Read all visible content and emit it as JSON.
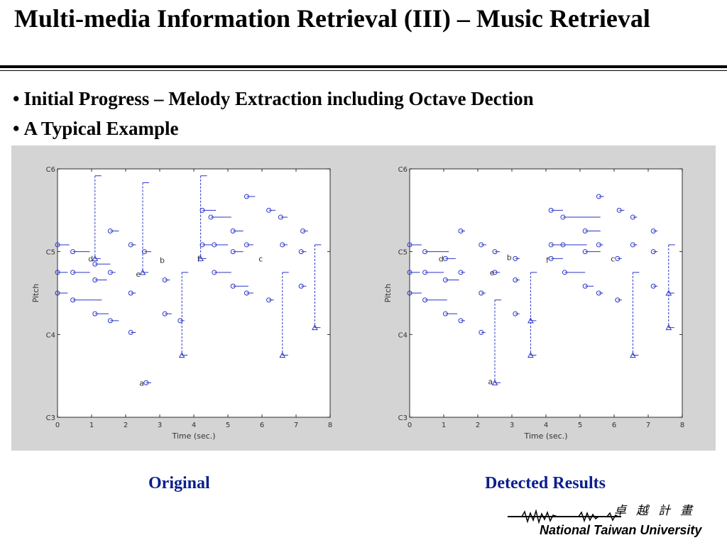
{
  "slide": {
    "title": "Multi-media Information Retrieval (III) – Music Retrieval",
    "bullets": [
      "Initial Progress – Melody Extraction including Octave Dection",
      "A Typical Example"
    ],
    "captions": {
      "left": "Original",
      "right": "Detected Results"
    },
    "logo": {
      "cjk": "卓越計畫",
      "name": "National Taiwan University"
    }
  },
  "colors": {
    "note": "#2a35c8",
    "title": "#000000",
    "caption": "#0a1e8c",
    "panel": "#d4d4d4"
  },
  "chart_data": [
    {
      "type": "scatter",
      "title": "",
      "xlabel": "Time (sec.)",
      "ylabel": "Pitch",
      "x_ticks": [
        "0",
        "1",
        "2",
        "3",
        "4",
        "5",
        "6",
        "7",
        "8"
      ],
      "y_ticks": [
        "C3",
        "C4",
        "C5",
        "C6"
      ],
      "xlim": [
        0,
        8
      ],
      "ylim": [
        36,
        72
      ],
      "grid": false,
      "notes": [
        {
          "start": 0.0,
          "end": 0.35,
          "pitch": 61
        },
        {
          "start": 0.45,
          "end": 0.95,
          "pitch": 60
        },
        {
          "start": 0.0,
          "end": 0.3,
          "pitch": 57
        },
        {
          "start": 0.45,
          "end": 0.95,
          "pitch": 57
        },
        {
          "start": 0.0,
          "end": 0.3,
          "pitch": 54
        },
        {
          "start": 0.45,
          "end": 1.3,
          "pitch": 53
        },
        {
          "start": 1.1,
          "end": 1.55,
          "pitch": 58.2
        },
        {
          "start": 1.1,
          "end": 1.45,
          "pitch": 55.9
        },
        {
          "start": 1.1,
          "end": 1.5,
          "pitch": 51
        },
        {
          "start": 1.55,
          "end": 1.8,
          "pitch": 63
        },
        {
          "start": 1.55,
          "end": 1.7,
          "pitch": 57
        },
        {
          "start": 1.55,
          "end": 1.8,
          "pitch": 50
        },
        {
          "start": 2.15,
          "end": 2.3,
          "pitch": 61
        },
        {
          "start": 2.15,
          "end": 2.3,
          "pitch": 54
        },
        {
          "start": 2.15,
          "end": 2.3,
          "pitch": 48.3
        },
        {
          "start": 2.55,
          "end": 2.75,
          "pitch": 60
        },
        {
          "start": 3.15,
          "end": 3.3,
          "pitch": 55.9
        },
        {
          "start": 3.15,
          "end": 3.35,
          "pitch": 51
        },
        {
          "start": 3.6,
          "end": 3.7,
          "pitch": 50
        },
        {
          "start": 2.6,
          "end": 2.75,
          "pitch": 41
        },
        {
          "start": 4.25,
          "end": 4.65,
          "pitch": 66
        },
        {
          "start": 4.5,
          "end": 5.1,
          "pitch": 65
        },
        {
          "start": 4.25,
          "end": 4.55,
          "pitch": 61
        },
        {
          "start": 4.6,
          "end": 5.0,
          "pitch": 61
        },
        {
          "start": 4.6,
          "end": 5.1,
          "pitch": 57
        },
        {
          "start": 5.15,
          "end": 5.45,
          "pitch": 63
        },
        {
          "start": 5.15,
          "end": 5.45,
          "pitch": 60
        },
        {
          "start": 5.15,
          "end": 5.6,
          "pitch": 55
        },
        {
          "start": 5.55,
          "end": 5.8,
          "pitch": 68
        },
        {
          "start": 5.55,
          "end": 5.75,
          "pitch": 61
        },
        {
          "start": 5.55,
          "end": 5.75,
          "pitch": 54
        },
        {
          "start": 6.2,
          "end": 6.4,
          "pitch": 66
        },
        {
          "start": 6.2,
          "end": 6.35,
          "pitch": 53
        },
        {
          "start": 6.55,
          "end": 6.75,
          "pitch": 65
        },
        {
          "start": 6.6,
          "end": 6.75,
          "pitch": 61
        },
        {
          "start": 7.2,
          "end": 7.35,
          "pitch": 63
        },
        {
          "start": 7.15,
          "end": 7.3,
          "pitch": 60
        },
        {
          "start": 7.15,
          "end": 7.3,
          "pitch": 55
        }
      ],
      "octave_markers": [
        {
          "time": 1.1,
          "from": 71,
          "to": 59
        },
        {
          "time": 2.5,
          "from": 70,
          "to": 57
        },
        {
          "time": 3.65,
          "from": 57,
          "to": 45
        },
        {
          "time": 4.2,
          "from": 71,
          "to": 59
        },
        {
          "time": 6.6,
          "from": 57,
          "to": 45
        },
        {
          "time": 7.55,
          "from": 61,
          "to": 49
        }
      ],
      "letters": [
        {
          "text": "d",
          "time": 0.9,
          "pitch": 59
        },
        {
          "text": "e",
          "time": 2.3,
          "pitch": 56.8
        },
        {
          "text": "b",
          "time": 3.0,
          "pitch": 58.8
        },
        {
          "text": "f",
          "time": 4.1,
          "pitch": 59
        },
        {
          "text": "c",
          "time": 5.9,
          "pitch": 59
        },
        {
          "text": "a",
          "time": 2.4,
          "pitch": 41
        }
      ]
    },
    {
      "type": "scatter",
      "title": "",
      "xlabel": "Time (sec.)",
      "ylabel": "Pitch",
      "x_ticks": [
        "0",
        "1",
        "2",
        "3",
        "4",
        "5",
        "6",
        "7",
        "8"
      ],
      "y_ticks": [
        "C3",
        "C4",
        "C5",
        "C6"
      ],
      "xlim": [
        0,
        8
      ],
      "ylim": [
        36,
        72
      ],
      "grid": false,
      "notes": [
        {
          "start": 0.0,
          "end": 0.35,
          "pitch": 61
        },
        {
          "start": 0.45,
          "end": 1.15,
          "pitch": 60
        },
        {
          "start": 0.0,
          "end": 0.3,
          "pitch": 57
        },
        {
          "start": 0.45,
          "end": 1.0,
          "pitch": 57
        },
        {
          "start": 0.0,
          "end": 0.35,
          "pitch": 54
        },
        {
          "start": 0.45,
          "end": 1.1,
          "pitch": 53
        },
        {
          "start": 1.05,
          "end": 1.35,
          "pitch": 59
        },
        {
          "start": 1.05,
          "end": 1.45,
          "pitch": 55.9
        },
        {
          "start": 1.05,
          "end": 1.4,
          "pitch": 51
        },
        {
          "start": 1.5,
          "end": 1.6,
          "pitch": 63
        },
        {
          "start": 1.5,
          "end": 1.6,
          "pitch": 57
        },
        {
          "start": 1.5,
          "end": 1.6,
          "pitch": 50
        },
        {
          "start": 2.1,
          "end": 2.25,
          "pitch": 61
        },
        {
          "start": 2.1,
          "end": 2.2,
          "pitch": 54
        },
        {
          "start": 2.1,
          "end": 2.2,
          "pitch": 48.3
        },
        {
          "start": 2.5,
          "end": 2.65,
          "pitch": 60
        },
        {
          "start": 2.5,
          "end": 2.65,
          "pitch": 57
        },
        {
          "start": 3.1,
          "end": 3.2,
          "pitch": 59
        },
        {
          "start": 3.1,
          "end": 3.2,
          "pitch": 55.9
        },
        {
          "start": 3.1,
          "end": 3.2,
          "pitch": 51
        },
        {
          "start": 4.15,
          "end": 4.5,
          "pitch": 66
        },
        {
          "start": 4.5,
          "end": 5.6,
          "pitch": 65
        },
        {
          "start": 4.15,
          "end": 4.5,
          "pitch": 61
        },
        {
          "start": 4.5,
          "end": 5.2,
          "pitch": 61
        },
        {
          "start": 4.15,
          "end": 4.5,
          "pitch": 59
        },
        {
          "start": 4.55,
          "end": 5.15,
          "pitch": 57
        },
        {
          "start": 5.15,
          "end": 5.6,
          "pitch": 63
        },
        {
          "start": 5.15,
          "end": 5.6,
          "pitch": 60
        },
        {
          "start": 5.15,
          "end": 5.4,
          "pitch": 55
        },
        {
          "start": 5.55,
          "end": 5.7,
          "pitch": 68
        },
        {
          "start": 5.55,
          "end": 5.65,
          "pitch": 61
        },
        {
          "start": 5.55,
          "end": 5.65,
          "pitch": 54
        },
        {
          "start": 6.15,
          "end": 6.3,
          "pitch": 66
        },
        {
          "start": 6.1,
          "end": 6.2,
          "pitch": 59
        },
        {
          "start": 6.1,
          "end": 6.2,
          "pitch": 53
        },
        {
          "start": 6.55,
          "end": 6.65,
          "pitch": 65
        },
        {
          "start": 6.55,
          "end": 6.65,
          "pitch": 61
        },
        {
          "start": 7.15,
          "end": 7.25,
          "pitch": 63
        },
        {
          "start": 7.15,
          "end": 7.25,
          "pitch": 60
        },
        {
          "start": 7.15,
          "end": 7.25,
          "pitch": 55
        }
      ],
      "octave_markers": [
        {
          "time": 2.5,
          "from": 53,
          "to": 41
        },
        {
          "time": 3.55,
          "from": 57,
          "to": 45
        },
        {
          "time": 3.55,
          "from": 50,
          "to": 50
        },
        {
          "time": 6.55,
          "from": 57,
          "to": 45
        },
        {
          "time": 7.6,
          "from": 61,
          "to": 49
        },
        {
          "time": 7.6,
          "from": 54,
          "to": 54
        }
      ],
      "letters": [
        {
          "text": "d",
          "time": 0.85,
          "pitch": 59
        },
        {
          "text": "e",
          "time": 2.35,
          "pitch": 57
        },
        {
          "text": "b",
          "time": 2.85,
          "pitch": 59.2
        },
        {
          "text": "f",
          "time": 4.0,
          "pitch": 58.8
        },
        {
          "text": "c",
          "time": 5.9,
          "pitch": 59
        },
        {
          "text": "a",
          "time": 2.3,
          "pitch": 41.2
        }
      ]
    }
  ]
}
